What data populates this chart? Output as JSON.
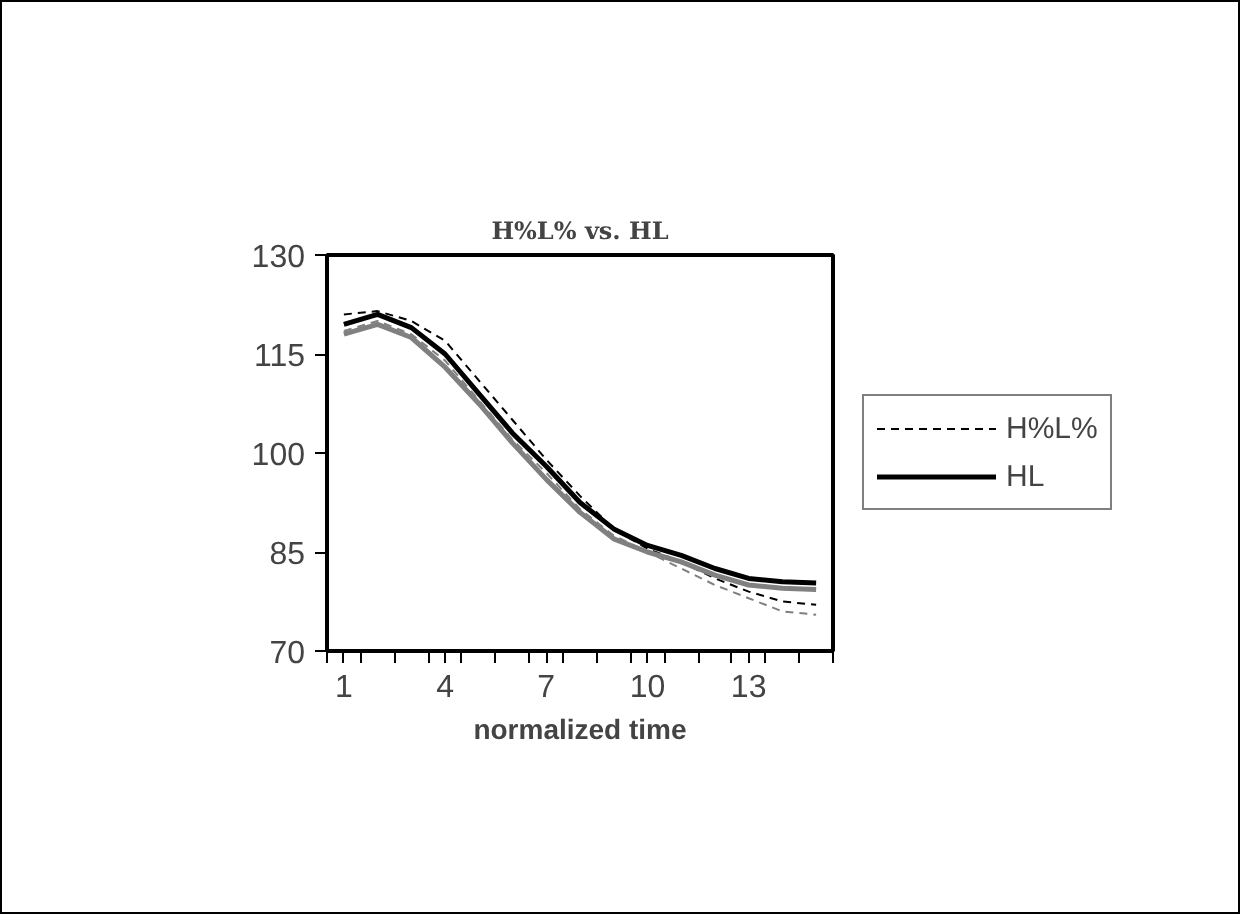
{
  "chart_data": {
    "type": "line",
    "title": "H%L% vs. HL",
    "xlabel": "normalized time",
    "x": [
      1,
      2,
      3,
      4,
      5,
      6,
      7,
      8,
      9,
      10,
      11,
      12,
      13,
      14,
      15
    ],
    "series": [
      {
        "name": "H%L%",
        "color": "#000000",
        "line_style": "dashed",
        "values": [
          121,
          121.5,
          120,
          117,
          111,
          105,
          99,
          93.5,
          88.5,
          85.5,
          83.5,
          81,
          79,
          77.5,
          77
        ]
      },
      {
        "name": "HL",
        "color": "#000000",
        "line_style": "solid",
        "values": [
          119.5,
          121,
          119,
          115,
          109,
          103,
          98,
          92.5,
          88.5,
          86,
          84.5,
          82.5,
          81,
          80.5,
          80.3
        ]
      },
      {
        "color": "#808080",
        "line_style": "solid",
        "values": [
          118,
          119.5,
          117.5,
          113,
          107.5,
          101.5,
          96,
          91,
          87,
          85,
          83.5,
          81.5,
          80,
          79.5,
          79.3
        ]
      },
      {
        "color": "#808080",
        "line_style": "dashed",
        "values": [
          118.5,
          120,
          118,
          114,
          108,
          102,
          97,
          91.5,
          87.5,
          85,
          82.5,
          80,
          78,
          76,
          75.5
        ]
      }
    ],
    "xlim": [
      0.5,
      15.5
    ],
    "xticks": [
      {
        "value": 0.5,
        "label": null
      },
      1,
      {
        "value": 1.5,
        "label": null
      },
      {
        "value": 2.5,
        "label": null
      },
      {
        "value": 3.5,
        "label": null
      },
      4,
      {
        "value": 4.5,
        "label": null
      },
      {
        "value": 5.5,
        "label": null
      },
      {
        "value": 6.5,
        "label": null
      },
      7,
      {
        "value": 7.5,
        "label": null
      },
      {
        "value": 8.5,
        "label": null
      },
      {
        "value": 9.5,
        "label": null
      },
      10,
      {
        "value": 10.5,
        "label": null
      },
      {
        "value": 11.5,
        "label": null
      },
      {
        "value": 12.5,
        "label": null
      },
      13,
      {
        "value": 13.5,
        "label": null
      },
      {
        "value": 14.5,
        "label": null
      },
      {
        "value": 15.5,
        "label": null
      }
    ],
    "ylim": [
      70,
      130
    ],
    "yticks": [
      70,
      85,
      100,
      115,
      130
    ],
    "grid": false,
    "legend": "right",
    "marker": "none"
  }
}
